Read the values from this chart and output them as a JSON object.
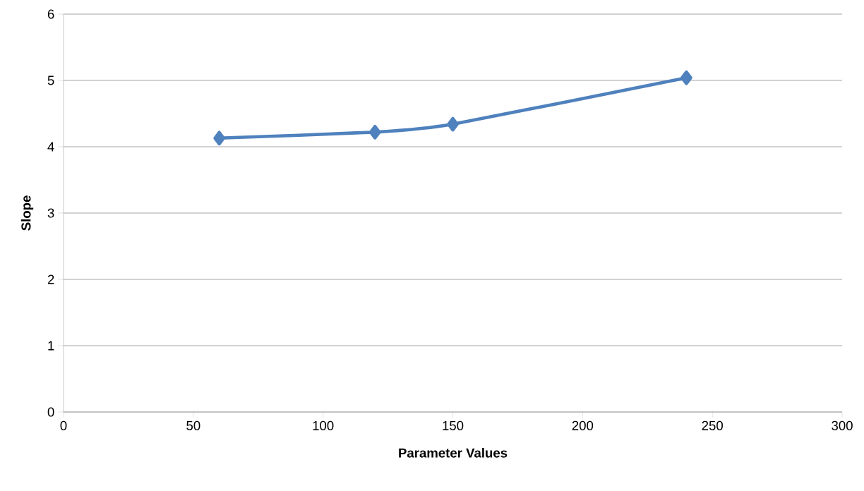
{
  "chart_data": {
    "type": "line",
    "xlabel": "Parameter Values",
    "ylabel": "Slope",
    "x": [
      60,
      120,
      150,
      240
    ],
    "series": [
      {
        "color": "#4f81bd",
        "values": [
          4.13,
          4.22,
          4.34,
          5.04
        ]
      }
    ],
    "xlim": [
      0,
      300
    ],
    "xticks": [
      0,
      50,
      100,
      150,
      200,
      250,
      300
    ],
    "ylim": [
      0,
      6
    ],
    "yticks": [
      0,
      1,
      2,
      3,
      4,
      5,
      6
    ],
    "grid": "y",
    "marker": "diamond",
    "line_style": "solid"
  }
}
